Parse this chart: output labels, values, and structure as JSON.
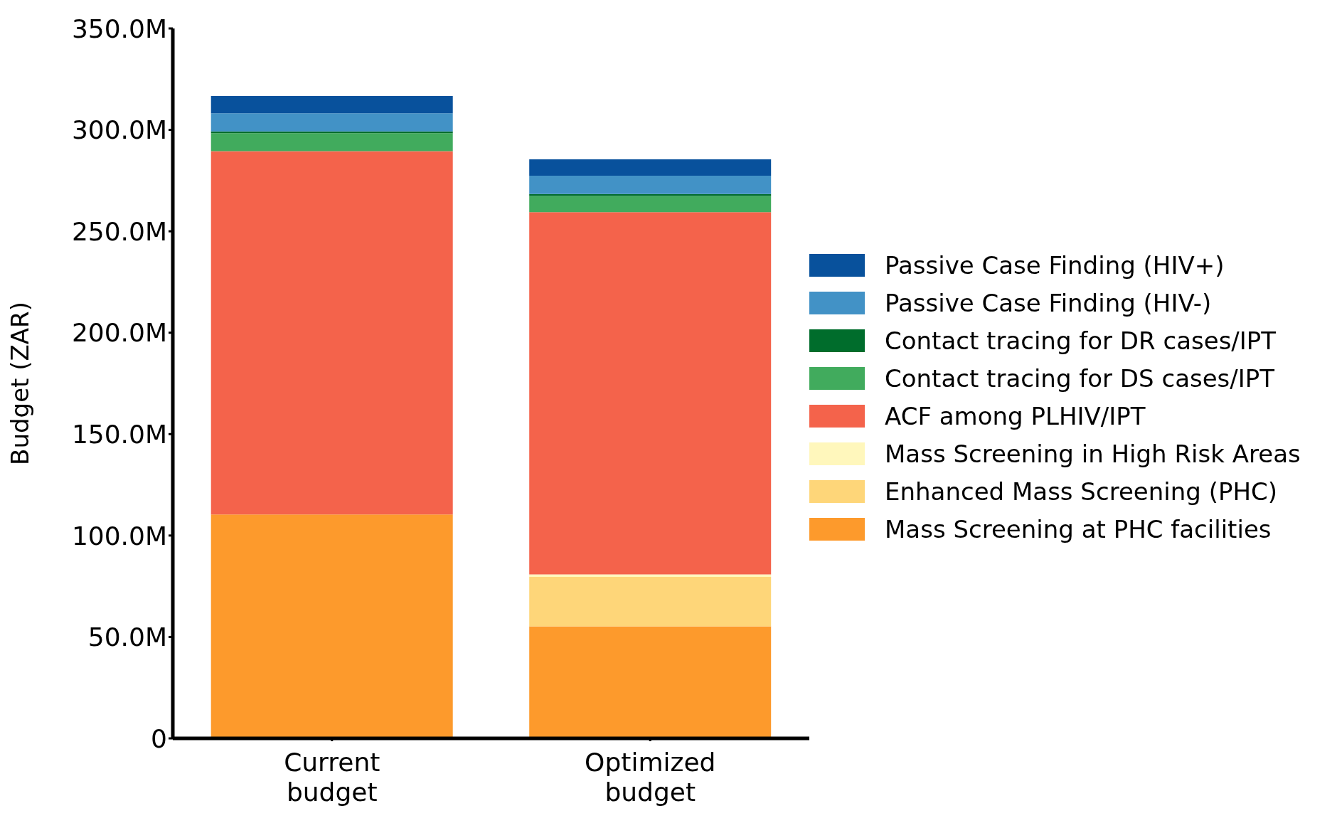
{
  "chart_data": {
    "type": "bar",
    "stacked": true,
    "ylabel": "Budget (ZAR)",
    "categories": [
      "Current budget",
      "Optimized budget"
    ],
    "series": [
      {
        "name": "Mass Screening at PHC facilities",
        "color": "#fd9a2c",
        "values": [
          110.4,
          55.2
        ]
      },
      {
        "name": "Enhanced Mass Screening (PHC)",
        "color": "#fed679",
        "values": [
          0,
          24.4
        ]
      },
      {
        "name": "Mass Screening in High Risk Areas",
        "color": "#fff7bc",
        "values": [
          0,
          1.2
        ]
      },
      {
        "name": "ACF among PLHIV/IPT",
        "color": "#f4634b",
        "values": [
          179.1,
          178.6
        ]
      },
      {
        "name": "Contact tracing for DS cases/IPT",
        "color": "#41ab5d",
        "values": [
          8.9,
          8.0
        ]
      },
      {
        "name": "Contact tracing for DR cases/IPT",
        "color": "#006d2c",
        "values": [
          0.8,
          1.0
        ]
      },
      {
        "name": "Passive Case Finding (HIV-)",
        "color": "#4292c6",
        "values": [
          9.0,
          9.0
        ]
      },
      {
        "name": "Passive Case Finding (HIV+)",
        "color": "#08519c",
        "values": [
          8.5,
          8.1
        ]
      }
    ],
    "ylim": [
      0,
      350
    ],
    "yticks": [
      {
        "value": 0,
        "label": "0"
      },
      {
        "value": 50,
        "label": "50.0M"
      },
      {
        "value": 100,
        "label": "100.0M"
      },
      {
        "value": 150,
        "label": "150.0M"
      },
      {
        "value": 200,
        "label": "200.0M"
      },
      {
        "value": 250,
        "label": "250.0M"
      },
      {
        "value": 300,
        "label": "300.0M"
      },
      {
        "value": 350,
        "label": "350.0M"
      }
    ],
    "grid": false,
    "legend": "right"
  }
}
